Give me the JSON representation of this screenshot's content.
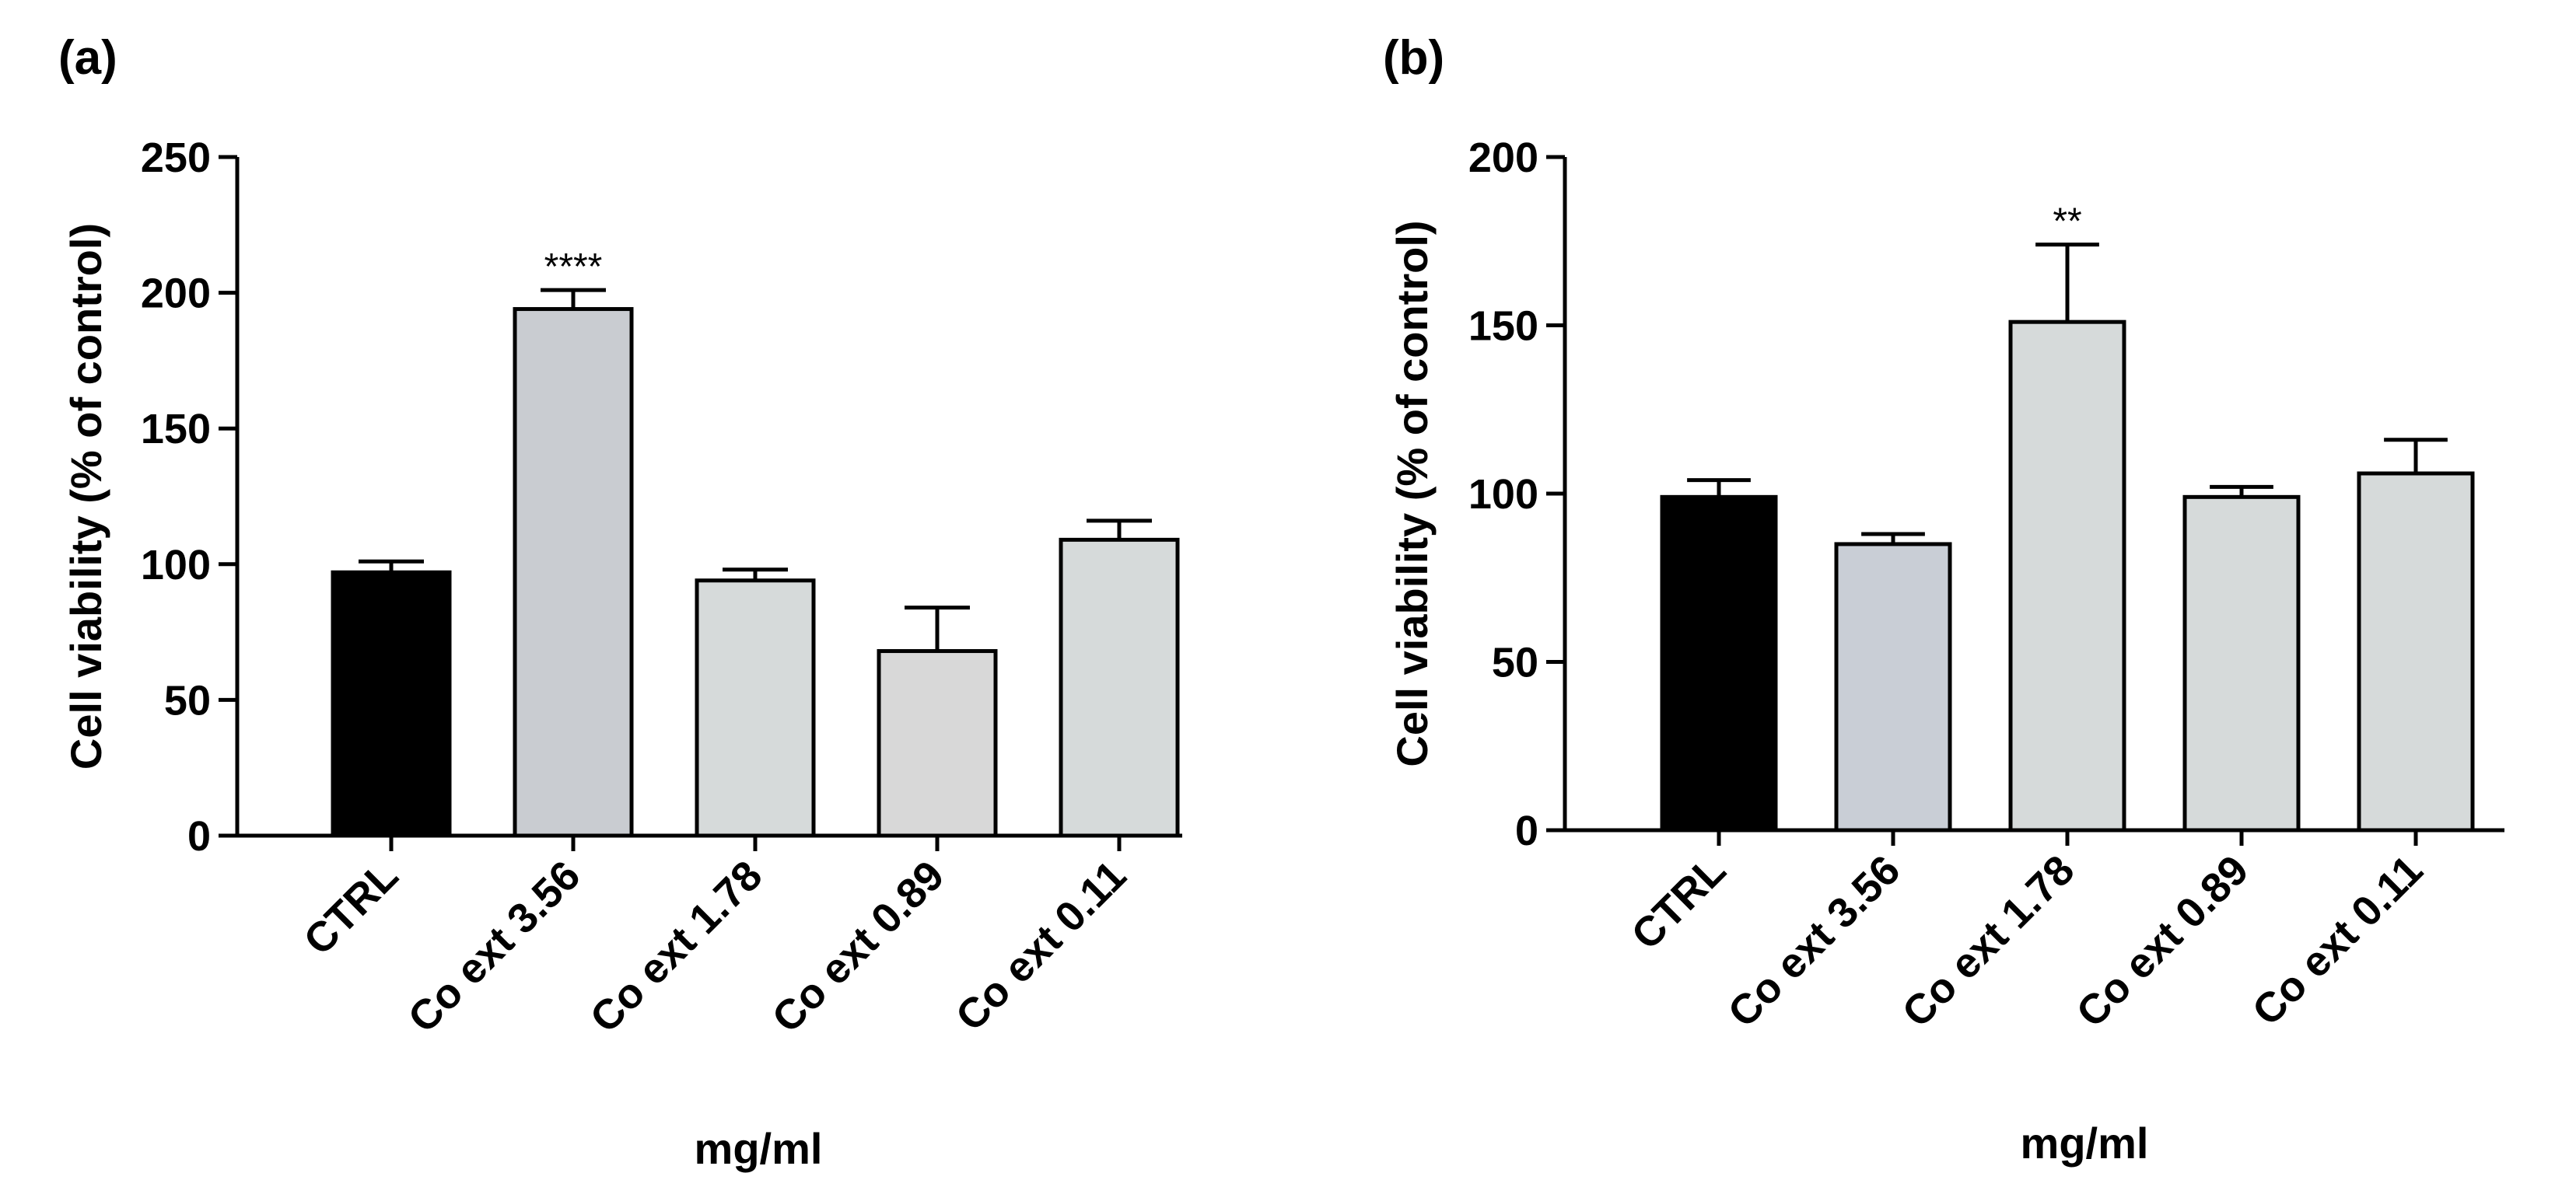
{
  "chart_data": [
    {
      "panel_label": "(a)",
      "type": "bar",
      "categories": [
        "CTRL",
        "Co ext 3.56",
        "Co ext 1.78",
        "Co ext 0.89",
        "Co ext 0.11"
      ],
      "values": [
        97,
        194,
        94,
        68,
        109
      ],
      "errors": [
        4,
        7,
        4,
        16,
        7
      ],
      "colors": [
        "#000000",
        "#c9ccd1",
        "#d6dada",
        "#d8d8d8",
        "#d6dada"
      ],
      "annotations": [
        "",
        "****",
        "",
        "",
        ""
      ],
      "ylim": [
        0,
        250
      ],
      "yticks": [
        0,
        50,
        100,
        150,
        200,
        250
      ],
      "xlabel": "mg/ml",
      "ylabel": "Cell viability (% of control)"
    },
    {
      "panel_label": "(b)",
      "type": "bar",
      "categories": [
        "CTRL",
        "Co ext 3.56",
        "Co ext 1.78",
        "Co ext 0.89",
        "Co ext 0.11"
      ],
      "values": [
        99,
        85,
        151,
        99,
        106
      ],
      "errors": [
        5,
        3,
        23,
        3,
        10
      ],
      "colors": [
        "#000000",
        "#c9ced6",
        "#d6dada",
        "#d6dada",
        "#d6dada"
      ],
      "annotations": [
        "",
        "",
        "**",
        "",
        ""
      ],
      "ylim": [
        0,
        200
      ],
      "yticks": [
        0,
        50,
        100,
        150,
        200
      ],
      "xlabel": "mg/ml",
      "ylabel": "Cell viability (% of control)"
    }
  ]
}
